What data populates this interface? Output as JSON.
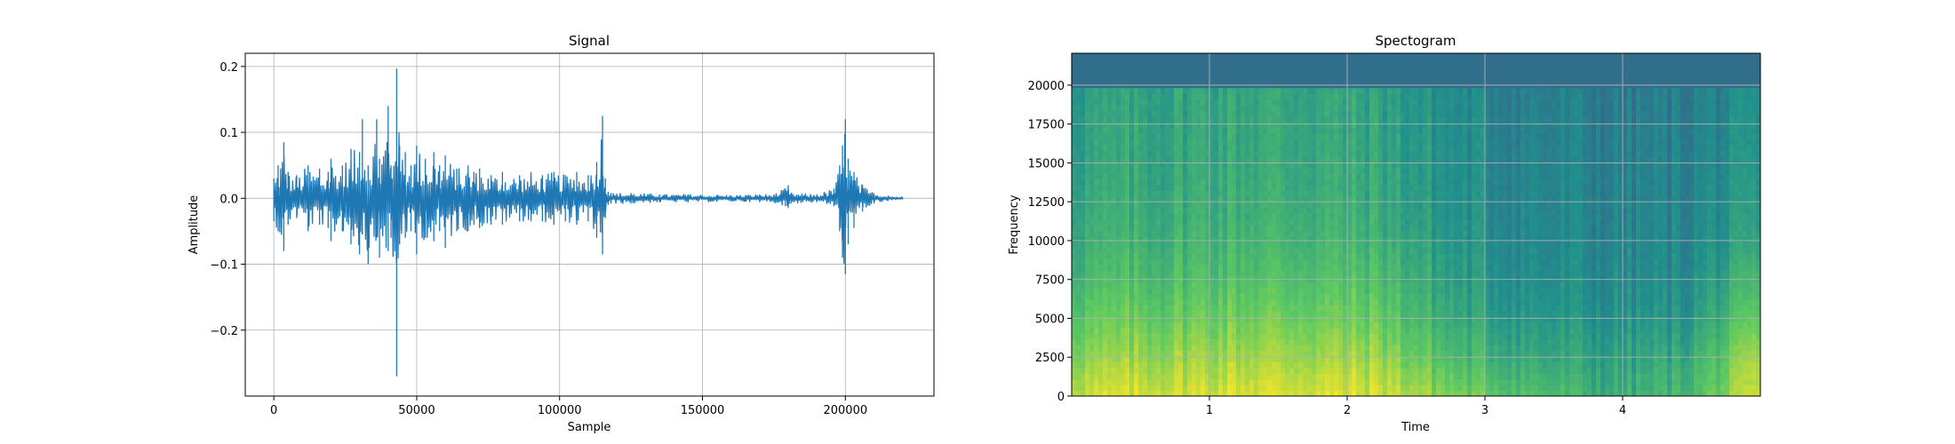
{
  "chart_data": [
    {
      "type": "line",
      "title": "Signal",
      "xlabel": "Sample",
      "ylabel": "Amplitude",
      "xlim": [
        -10000,
        231000
      ],
      "ylim": [
        -0.3,
        0.22
      ],
      "grid": true,
      "xticks": [
        {
          "value": 0,
          "label": "0"
        },
        {
          "value": 50000,
          "label": "50000"
        },
        {
          "value": 100000,
          "label": "100000"
        },
        {
          "value": 150000,
          "label": "150000"
        },
        {
          "value": 200000,
          "label": "200000"
        }
      ],
      "yticks": [
        {
          "value": -0.2,
          "label": "−0.2"
        },
        {
          "value": -0.1,
          "label": "−0.1"
        },
        {
          "value": 0.0,
          "label": "0.0"
        },
        {
          "value": 0.1,
          "label": "0.1"
        },
        {
          "value": 0.2,
          "label": "0.2"
        }
      ],
      "line_color": "#1f77b4",
      "series": [
        {
          "x": [
            0,
            1500,
            3500,
            5000,
            8000,
            12000,
            16000,
            19000,
            20000,
            24000,
            27000,
            30000,
            31000,
            33000,
            36000,
            37000,
            40000,
            41000,
            43000,
            44000,
            46000,
            48000,
            50000,
            53000,
            56000,
            58000,
            60000,
            64000,
            68000,
            70000,
            72000,
            76000,
            80000,
            86000,
            90000,
            94000,
            98000,
            102000,
            106000,
            110000,
            113000,
            115000,
            116000,
            117000,
            118000,
            125000,
            135000,
            145000,
            155000,
            165000,
            170000,
            175000,
            179000,
            180000,
            181000,
            190000,
            196000,
            198000,
            199000,
            200000,
            201000,
            203000,
            206000,
            210000,
            215000,
            220000
          ],
          "y_upper": [
            0.03,
            0.05,
            0.085,
            0.04,
            0.035,
            0.05,
            0.045,
            0.04,
            0.06,
            0.05,
            0.075,
            0.07,
            0.12,
            0.05,
            0.12,
            0.06,
            0.14,
            0.05,
            0.197,
            0.08,
            0.07,
            0.05,
            0.08,
            0.06,
            0.07,
            0.05,
            0.065,
            0.045,
            0.05,
            0.04,
            0.045,
            0.035,
            0.04,
            0.035,
            0.04,
            0.035,
            0.04,
            0.035,
            0.04,
            0.035,
            0.055,
            0.125,
            0.03,
            0.01,
            0.008,
            0.008,
            0.006,
            0.006,
            0.005,
            0.005,
            0.006,
            0.006,
            0.015,
            0.02,
            0.008,
            0.006,
            0.015,
            0.05,
            0.08,
            0.12,
            0.06,
            0.04,
            0.02,
            0.008,
            0.004,
            0.002
          ],
          "y_lower": [
            -0.035,
            -0.05,
            -0.08,
            -0.04,
            -0.03,
            -0.05,
            -0.04,
            -0.045,
            -0.065,
            -0.05,
            -0.07,
            -0.085,
            -0.055,
            -0.1,
            -0.06,
            -0.09,
            -0.08,
            -0.06,
            -0.27,
            -0.07,
            -0.06,
            -0.05,
            -0.085,
            -0.06,
            -0.065,
            -0.05,
            -0.075,
            -0.05,
            -0.05,
            -0.04,
            -0.045,
            -0.04,
            -0.04,
            -0.035,
            -0.035,
            -0.035,
            -0.04,
            -0.035,
            -0.04,
            -0.035,
            -0.06,
            -0.085,
            -0.03,
            -0.01,
            -0.008,
            -0.008,
            -0.006,
            -0.006,
            -0.005,
            -0.005,
            -0.006,
            -0.006,
            -0.012,
            -0.015,
            -0.008,
            -0.006,
            -0.012,
            -0.05,
            -0.09,
            -0.115,
            -0.07,
            -0.045,
            -0.02,
            -0.008,
            -0.004,
            -0.002
          ]
        }
      ]
    },
    {
      "type": "heatmap",
      "title": "Spectogram",
      "xlabel": "Time",
      "ylabel": "Frequency",
      "xlim": [
        0,
        5
      ],
      "ylim": [
        0,
        22050
      ],
      "grid": true,
      "xticks": [
        {
          "value": 1,
          "label": "1"
        },
        {
          "value": 2,
          "label": "2"
        },
        {
          "value": 3,
          "label": "3"
        },
        {
          "value": 4,
          "label": "4"
        }
      ],
      "yticks": [
        {
          "value": 0,
          "label": "0"
        },
        {
          "value": 2500,
          "label": "2500"
        },
        {
          "value": 5000,
          "label": "5000"
        },
        {
          "value": 7500,
          "label": "7500"
        },
        {
          "value": 10000,
          "label": "10000"
        },
        {
          "value": 12500,
          "label": "12500"
        },
        {
          "value": 15000,
          "label": "15000"
        },
        {
          "value": 17500,
          "label": "17500"
        },
        {
          "value": 20000,
          "label": "20000"
        }
      ],
      "colormap": "viridis",
      "cutoff_hz": 20000,
      "intensity_rows_low_to_high_freq": [
        [
          0.92,
          0.93,
          0.95,
          0.95,
          0.94,
          0.8,
          0.7,
          0.62,
          0.66,
          0.92
        ],
        [
          0.82,
          0.84,
          0.86,
          0.86,
          0.85,
          0.68,
          0.6,
          0.56,
          0.6,
          0.85
        ],
        [
          0.74,
          0.76,
          0.78,
          0.78,
          0.76,
          0.6,
          0.53,
          0.5,
          0.52,
          0.74
        ],
        [
          0.67,
          0.69,
          0.71,
          0.71,
          0.7,
          0.55,
          0.49,
          0.47,
          0.48,
          0.65
        ],
        [
          0.62,
          0.64,
          0.66,
          0.66,
          0.64,
          0.52,
          0.47,
          0.45,
          0.46,
          0.56
        ],
        [
          0.59,
          0.61,
          0.63,
          0.63,
          0.61,
          0.5,
          0.46,
          0.44,
          0.45,
          0.52
        ],
        [
          0.57,
          0.59,
          0.61,
          0.61,
          0.59,
          0.49,
          0.45,
          0.43,
          0.44,
          0.5
        ],
        [
          0.56,
          0.58,
          0.6,
          0.6,
          0.58,
          0.48,
          0.44,
          0.42,
          0.43,
          0.48
        ],
        [
          0.55,
          0.57,
          0.59,
          0.59,
          0.57,
          0.47,
          0.43,
          0.41,
          0.42,
          0.47
        ],
        [
          0.36,
          0.36,
          0.36,
          0.36,
          0.36,
          0.36,
          0.36,
          0.36,
          0.36,
          0.36
        ]
      ]
    }
  ]
}
